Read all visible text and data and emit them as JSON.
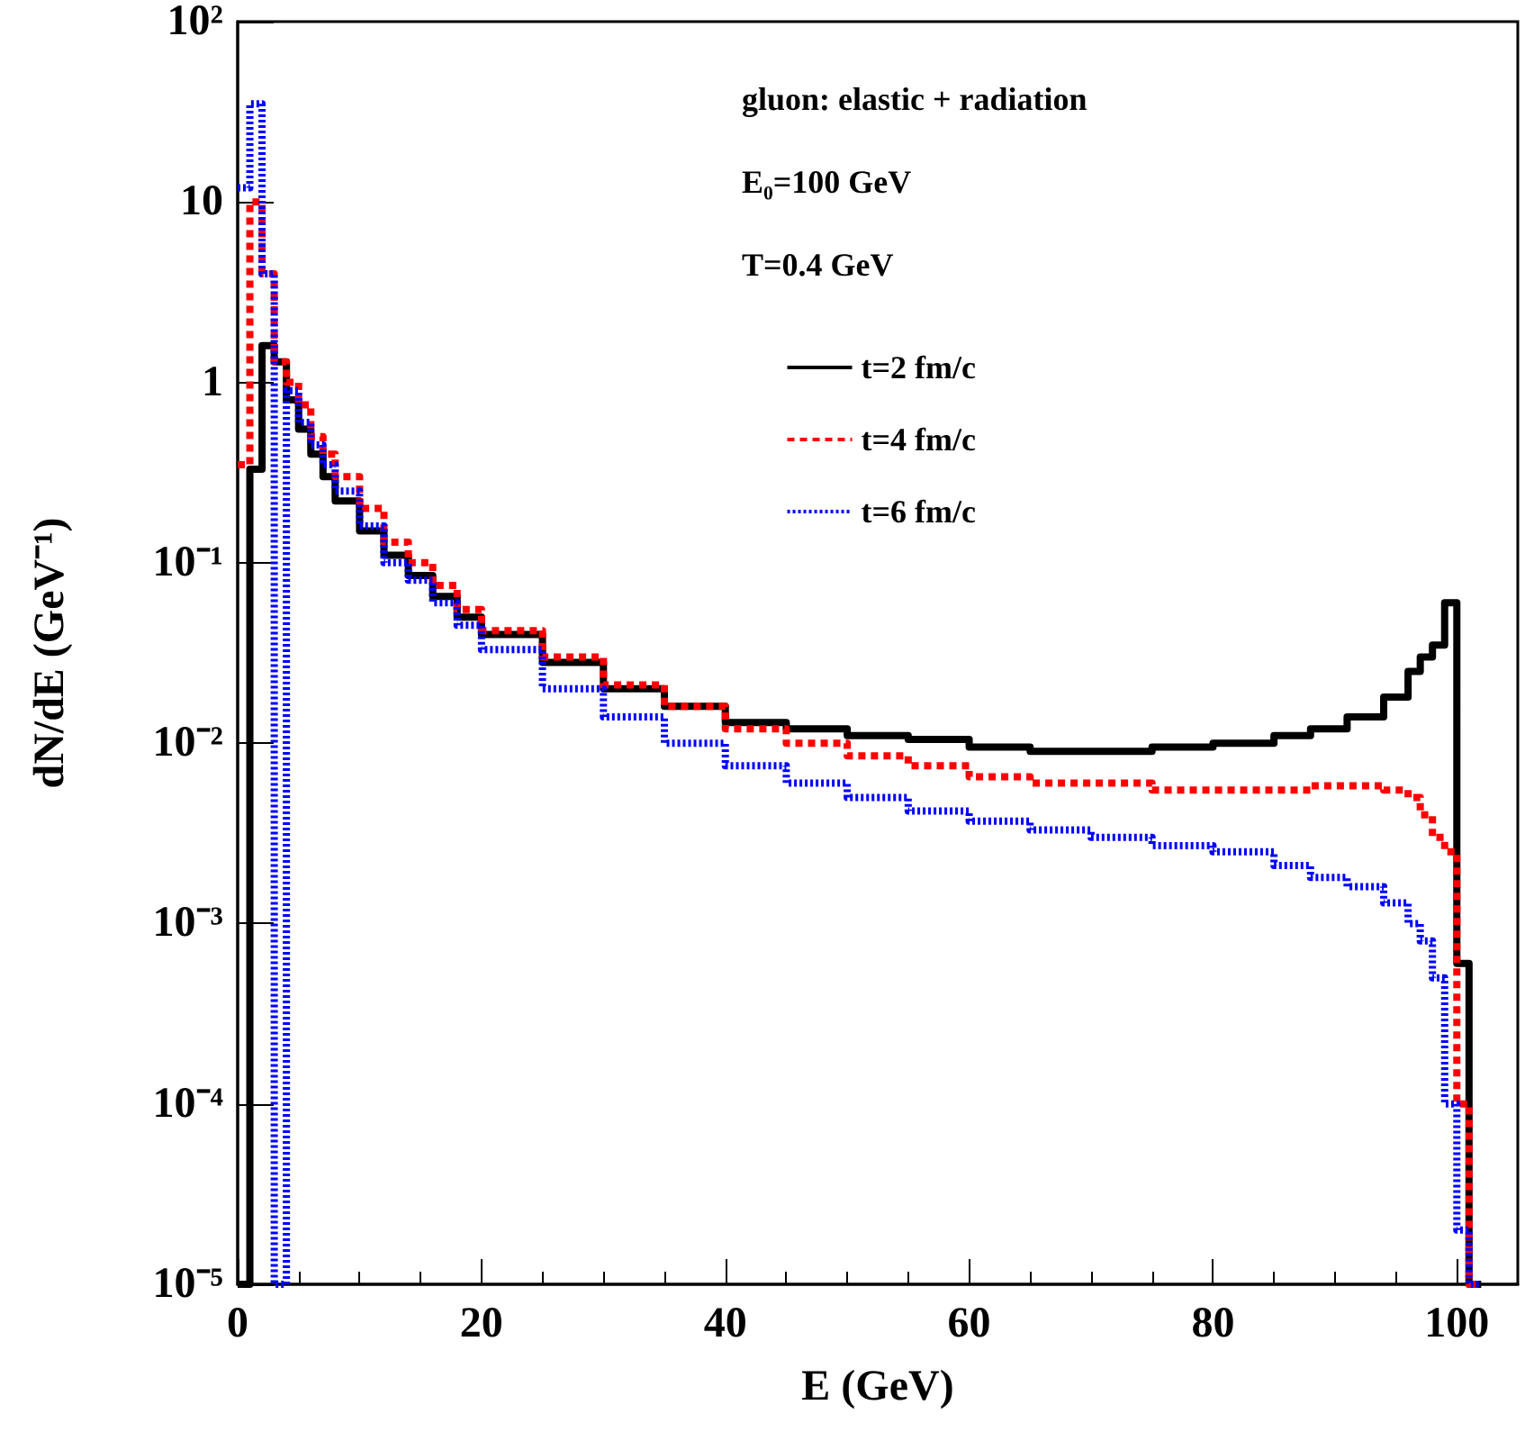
{
  "chart_data": {
    "type": "step",
    "xlabel": "E (GeV)",
    "ylabel": "dN/dE (GeV⁻¹)",
    "annotations": [
      "gluon: elastic + radiation",
      "E₀=100 GeV",
      "T=0.4 GeV"
    ],
    "x": [
      0,
      1,
      2,
      3,
      4,
      5,
      6,
      7,
      8,
      10,
      12,
      14,
      16,
      18,
      20,
      25,
      30,
      35,
      40,
      45,
      50,
      55,
      60,
      65,
      70,
      75,
      80,
      85,
      88,
      91,
      94,
      96,
      97,
      98,
      99,
      100,
      101,
      102
    ],
    "series": [
      {
        "name": "t=2 fm/c",
        "color": "#000000",
        "line_style": "solid",
        "values": [
          1e-05,
          0.33,
          1.6,
          1.3,
          0.8,
          0.55,
          0.4,
          0.3,
          0.22,
          0.15,
          0.11,
          0.085,
          0.065,
          0.05,
          0.04,
          0.028,
          0.02,
          0.016,
          0.013,
          0.012,
          0.011,
          0.0105,
          0.0095,
          0.009,
          0.009,
          0.0095,
          0.01,
          0.011,
          0.012,
          0.014,
          0.018,
          0.025,
          0.03,
          0.035,
          0.06,
          0.0006,
          1e-05,
          1e-05
        ]
      },
      {
        "name": "t=4 fm/c",
        "color": "#ff0000",
        "line_style": "dashed",
        "values": [
          0.35,
          10,
          4,
          1.3,
          1,
          0.75,
          0.5,
          0.4,
          0.3,
          0.2,
          0.13,
          0.1,
          0.075,
          0.055,
          0.042,
          0.03,
          0.021,
          0.016,
          0.012,
          0.01,
          0.0085,
          0.0075,
          0.0065,
          0.006,
          0.006,
          0.0055,
          0.0055,
          0.0055,
          0.0058,
          0.0058,
          0.0055,
          0.005,
          0.004,
          0.003,
          0.0025,
          0.0001,
          1e-05,
          1e-05
        ]
      },
      {
        "name": "t=6 fm/c",
        "color": "#0000ff",
        "line_style": "dotted",
        "values": [
          12,
          35,
          4,
          1e-05,
          0.9,
          0.6,
          0.45,
          0.35,
          0.25,
          0.16,
          0.1,
          0.08,
          0.06,
          0.045,
          0.033,
          0.02,
          0.014,
          0.01,
          0.0075,
          0.006,
          0.005,
          0.0042,
          0.0037,
          0.0033,
          0.003,
          0.0027,
          0.0025,
          0.0021,
          0.0018,
          0.0016,
          0.0013,
          0.001,
          0.0008,
          0.0005,
          0.0001,
          2e-05,
          1e-05,
          1e-05
        ]
      }
    ],
    "xlim": [
      0,
      105
    ],
    "xticks": [
      0,
      20,
      40,
      60,
      80,
      100
    ],
    "ylim": [
      1e-05,
      100
    ],
    "log": true,
    "yticks": [
      {
        "value": 100,
        "label": "10²"
      },
      10,
      1,
      {
        "value": 0.1,
        "label": "10⁻¹"
      },
      {
        "value": 0.01,
        "label": "10⁻²"
      },
      {
        "value": 0.001,
        "label": "10⁻³"
      },
      {
        "value": 0.0001,
        "label": "10⁻⁴"
      },
      {
        "value": 1e-05,
        "label": "10⁻⁵"
      }
    ],
    "grid": false,
    "legend": "top right",
    "marker": "none"
  }
}
